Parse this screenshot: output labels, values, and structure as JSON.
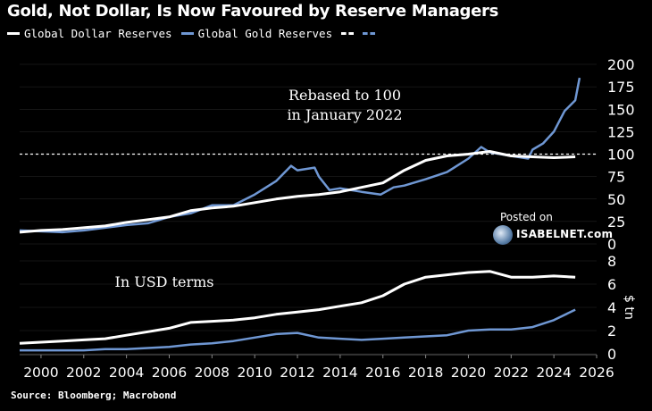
{
  "header": {
    "title": "Gold, Not Dollar, Is Now Favoured by Reserve Managers"
  },
  "legend": {
    "items": [
      {
        "label": "Global Dollar Reserves",
        "color": "#ffffff"
      },
      {
        "label": "Global Gold Reserves",
        "color": "#6f97d3"
      }
    ]
  },
  "footer": {
    "source": "Source: Bloomberg; Macrobond"
  },
  "watermark": {
    "line1": "Posted on",
    "line2": "ISABELNET.com"
  },
  "colors": {
    "dollar": "#ffffff",
    "gold": "#6f97d3",
    "background": "#000000",
    "grid": "#2a2a2a"
  },
  "chart_data": [
    {
      "type": "line",
      "annotation": "Rebased to 100\nin January 2022",
      "reference_line": 100,
      "ylim": [
        0,
        200
      ],
      "yticks": [
        0,
        25,
        50,
        75,
        100,
        125,
        150,
        175,
        200
      ],
      "xlim": [
        1999,
        2026
      ],
      "series": [
        {
          "name": "Global Dollar Reserves",
          "x": [
            1999,
            2000,
            2001,
            2002,
            2003,
            2004,
            2005,
            2006,
            2007,
            2008,
            2009,
            2010,
            2011,
            2012,
            2013,
            2014,
            2015,
            2016,
            2017,
            2018,
            2019,
            2020,
            2021,
            2022,
            2023,
            2024,
            2025
          ],
          "y": [
            13,
            15,
            16,
            18,
            20,
            24,
            27,
            30,
            37,
            40,
            42,
            46,
            50,
            53,
            55,
            58,
            63,
            68,
            82,
            93,
            98,
            100,
            103,
            98,
            97,
            96,
            97
          ]
        },
        {
          "name": "Global Gold Reserves",
          "x": [
            1999,
            2000,
            2001,
            2002,
            2003,
            2004,
            2005,
            2006,
            2007,
            2008,
            2009,
            2010,
            2011,
            2011.7,
            2012,
            2012.8,
            2013,
            2013.5,
            2014,
            2015,
            2015.9,
            2016.5,
            2017,
            2018,
            2019,
            2020,
            2020.6,
            2021,
            2022,
            2022.8,
            2023,
            2023.5,
            2024,
            2024.5,
            2025,
            2025.2
          ],
          "y": [
            15,
            14,
            13,
            15,
            18,
            21,
            23,
            30,
            34,
            43,
            43,
            55,
            70,
            87,
            82,
            85,
            75,
            60,
            62,
            58,
            55,
            63,
            65,
            72,
            80,
            95,
            108,
            102,
            98,
            95,
            105,
            112,
            125,
            148,
            160,
            185
          ]
        }
      ]
    },
    {
      "type": "line",
      "annotation": "In USD terms",
      "ylabel": "$ tn",
      "ylim": [
        0,
        8
      ],
      "yticks": [
        0,
        2,
        4,
        6,
        8
      ],
      "xlim": [
        1999,
        2026
      ],
      "xticks": [
        2000,
        2002,
        2004,
        2006,
        2008,
        2010,
        2012,
        2014,
        2016,
        2018,
        2020,
        2022,
        2024,
        2026
      ],
      "series": [
        {
          "name": "Global Dollar Reserves",
          "x": [
            1999,
            2000,
            2001,
            2002,
            2003,
            2004,
            2005,
            2006,
            2007,
            2008,
            2009,
            2010,
            2011,
            2012,
            2013,
            2014,
            2015,
            2016,
            2017,
            2018,
            2019,
            2020,
            2021,
            2022,
            2023,
            2024,
            2025
          ],
          "y": [
            0.9,
            1.0,
            1.1,
            1.2,
            1.3,
            1.6,
            1.9,
            2.2,
            2.7,
            2.8,
            2.9,
            3.1,
            3.4,
            3.6,
            3.8,
            4.1,
            4.4,
            5.0,
            6.0,
            6.6,
            6.8,
            7.0,
            7.1,
            6.6,
            6.6,
            6.7,
            6.6
          ]
        },
        {
          "name": "Global Gold Reserves",
          "x": [
            1999,
            2000,
            2001,
            2002,
            2003,
            2004,
            2005,
            2006,
            2007,
            2008,
            2009,
            2010,
            2011,
            2012,
            2013,
            2014,
            2015,
            2016,
            2017,
            2018,
            2019,
            2020,
            2021,
            2022,
            2023,
            2024,
            2025
          ],
          "y": [
            0.3,
            0.3,
            0.3,
            0.3,
            0.4,
            0.4,
            0.5,
            0.6,
            0.8,
            0.9,
            1.1,
            1.4,
            1.7,
            1.8,
            1.4,
            1.3,
            1.2,
            1.3,
            1.4,
            1.5,
            1.6,
            2.0,
            2.1,
            2.1,
            2.3,
            2.9,
            3.8
          ]
        }
      ]
    }
  ]
}
